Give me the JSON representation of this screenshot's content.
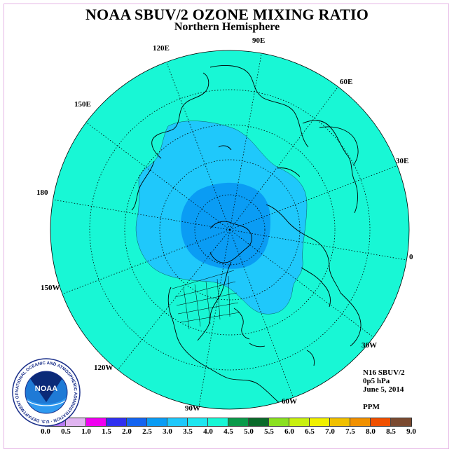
{
  "header": {
    "title": "NOAA SBUV/2 OZONE MIXING RATIO",
    "subtitle": "Northern Hemisphere"
  },
  "map": {
    "projection": "polar stereographic",
    "hemisphere": "north",
    "longitude_labels": [
      "90E",
      "60E",
      "30E",
      "0",
      "30W",
      "60W",
      "90W",
      "120W",
      "150W",
      "180",
      "150E",
      "120E"
    ],
    "colors": {
      "background": "#18f7d5",
      "level_3_0": "#1fc8fb",
      "level_2_5": "#0a9cf4",
      "coast": "#000000"
    }
  },
  "info": {
    "instrument": "N16 SBUV/2",
    "pressure": "0p5 hPa",
    "date": "June 5, 2014",
    "units": "PPM"
  },
  "colorbar": {
    "tick_labels": [
      "0.0",
      "0.5",
      "1.0",
      "1.5",
      "2.0",
      "2.5",
      "3.0",
      "3.5",
      "4.0",
      "4.5",
      "5.0",
      "5.5",
      "6.0",
      "6.5",
      "7.0",
      "7.5",
      "8.0",
      "8.5",
      "9.0"
    ],
    "colors": [
      "#b87af0",
      "#e0b4f0",
      "#f000f0",
      "#3030f0",
      "#1464f0",
      "#0a9cf4",
      "#1fc8fb",
      "#1ee6f0",
      "#18f7d5",
      "#0a9a4a",
      "#0a6a2a",
      "#8ae020",
      "#c8f010",
      "#f0f000",
      "#f0c000",
      "#f09000",
      "#f05000",
      "#f00000",
      "#7a4a30"
    ]
  },
  "logo": {
    "text": "NOAA",
    "ring_text": "NATIONAL OCEANIC AND ATMOSPHERIC ADMINISTRATION · U.S. DEPARTMENT OF COMMERCE"
  }
}
